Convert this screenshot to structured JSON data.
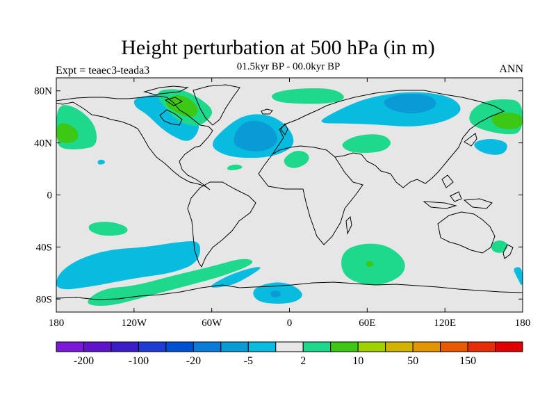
{
  "title": "Height perturbation at 500 hPa (in m)",
  "subtitle": "01.5kyr BP - 00.0kyr BP",
  "left_label": "Expt = teaec3-teada3",
  "right_label": "ANN",
  "map": {
    "projection": "cylindrical equidistant",
    "lon_range": [
      -180,
      180
    ],
    "lat_range": [
      -90,
      90
    ],
    "background_color": "#e6e6e6",
    "lat_ticks": [
      {
        "lat": 80,
        "label": "80N"
      },
      {
        "lat": 40,
        "label": "40N"
      },
      {
        "lat": 0,
        "label": "0"
      },
      {
        "lat": -40,
        "label": "40S"
      },
      {
        "lat": -80,
        "label": "80S"
      }
    ],
    "lon_ticks": [
      {
        "lon": -180,
        "label": "180"
      },
      {
        "lon": -120,
        "label": "120W"
      },
      {
        "lon": -60,
        "label": "60W"
      },
      {
        "lon": 0,
        "label": "0"
      },
      {
        "lon": 60,
        "label": "60E"
      },
      {
        "lon": 120,
        "label": "120E"
      },
      {
        "lon": 180,
        "label": "180"
      }
    ]
  },
  "colorbar": {
    "colors": [
      "#7a1ad6",
      "#5e14c8",
      "#3c1ec8",
      "#1e3cd2",
      "#0050d2",
      "#0a7bd8",
      "#0a9ad6",
      "#08bce0",
      "#e6e6e6",
      "#1ed88c",
      "#3cc814",
      "#a0d200",
      "#d2b400",
      "#e19600",
      "#e65a00",
      "#e62d0a",
      "#e00000"
    ],
    "labels": [
      {
        "after_box": 1,
        "text": "-200"
      },
      {
        "after_box": 3,
        "text": "-100"
      },
      {
        "after_box": 5,
        "text": "-20"
      },
      {
        "after_box": 7,
        "text": "-5"
      },
      {
        "after_box": 9,
        "text": "2"
      },
      {
        "after_box": 11,
        "text": "10"
      },
      {
        "after_box": 13,
        "text": "50"
      },
      {
        "after_box": 15,
        "text": "150"
      }
    ]
  },
  "contour_fills": [
    {
      "level": "-5",
      "color": "#08bce0",
      "pts": [
        [
          -120,
          75
        ],
        [
          -95,
          78
        ],
        [
          -80,
          70
        ],
        [
          -70,
          58
        ],
        [
          -70,
          48
        ],
        [
          -78,
          40
        ],
        [
          -90,
          45
        ],
        [
          -100,
          52
        ],
        [
          -110,
          62
        ],
        [
          -120,
          68
        ]
      ]
    },
    {
      "level": "-5",
      "color": "#08bce0",
      "pts": [
        [
          -62,
          38
        ],
        [
          -52,
          50
        ],
        [
          -35,
          62
        ],
        [
          -15,
          62
        ],
        [
          0,
          52
        ],
        [
          5,
          38
        ],
        [
          -10,
          30
        ],
        [
          -30,
          28
        ],
        [
          -50,
          30
        ]
      ]
    },
    {
      "level": "-20",
      "color": "#0a9ad6",
      "pts": [
        [
          -45,
          40
        ],
        [
          -38,
          55
        ],
        [
          -25,
          58
        ],
        [
          -12,
          52
        ],
        [
          -8,
          40
        ],
        [
          -20,
          33
        ],
        [
          -35,
          34
        ]
      ]
    },
    {
      "level": "-5",
      "color": "#08bce0",
      "pts": [
        [
          20,
          55
        ],
        [
          35,
          64
        ],
        [
          60,
          75
        ],
        [
          95,
          80
        ],
        [
          125,
          76
        ],
        [
          135,
          65
        ],
        [
          120,
          56
        ],
        [
          95,
          52
        ],
        [
          70,
          54
        ],
        [
          45,
          55
        ]
      ]
    },
    {
      "level": "-20",
      "color": "#0a9ad6",
      "pts": [
        [
          70,
          72
        ],
        [
          85,
          78
        ],
        [
          110,
          77
        ],
        [
          115,
          68
        ],
        [
          100,
          62
        ],
        [
          80,
          64
        ]
      ]
    },
    {
      "level": "-5",
      "color": "#08bce0",
      "pts": [
        [
          140,
          40
        ],
        [
          155,
          44
        ],
        [
          170,
          40
        ],
        [
          165,
          30
        ],
        [
          148,
          32
        ]
      ]
    },
    {
      "level": "-5",
      "color": "#08bce0",
      "pts": [
        [
          -148,
          27
        ],
        [
          -143,
          27
        ],
        [
          -142,
          24
        ],
        [
          -148,
          23
        ]
      ]
    },
    {
      "level": "-5",
      "color": "#08bce0",
      "pts": [
        [
          -180,
          -62
        ],
        [
          -165,
          -50
        ],
        [
          -140,
          -42
        ],
        [
          -110,
          -40
        ],
        [
          -85,
          -36
        ],
        [
          -68,
          -35
        ],
        [
          -70,
          -52
        ],
        [
          -90,
          -60
        ],
        [
          -120,
          -64
        ],
        [
          -150,
          -70
        ],
        [
          -180,
          -74
        ]
      ]
    },
    {
      "level": "-5",
      "color": "#08bce0",
      "pts": [
        [
          -65,
          -72
        ],
        [
          -48,
          -62
        ],
        [
          -30,
          -56
        ],
        [
          -20,
          -55
        ],
        [
          -30,
          -62
        ],
        [
          -45,
          -70
        ]
      ]
    },
    {
      "level": "-5",
      "color": "#08bce0",
      "pts": [
        [
          -30,
          -72
        ],
        [
          -10,
          -66
        ],
        [
          5,
          -70
        ],
        [
          12,
          -78
        ],
        [
          0,
          -84
        ],
        [
          -25,
          -83
        ]
      ]
    },
    {
      "level": "-20",
      "color": "#0a9ad6",
      "pts": [
        [
          -15,
          -74
        ],
        [
          -8,
          -73
        ],
        [
          -6,
          -78
        ],
        [
          -14,
          -79
        ]
      ]
    },
    {
      "level": "-5",
      "color": "#08bce0",
      "pts": [
        [
          172,
          -56
        ],
        [
          176,
          -64
        ],
        [
          180,
          -72
        ],
        [
          180,
          -55
        ]
      ]
    },
    {
      "level": "2",
      "color": "#1ed88c",
      "pts": [
        [
          -105,
          80
        ],
        [
          -85,
          82
        ],
        [
          -70,
          75
        ],
        [
          -58,
          65
        ],
        [
          -63,
          57
        ],
        [
          -72,
          52
        ],
        [
          -85,
          56
        ],
        [
          -95,
          65
        ]
      ]
    },
    {
      "level": "10",
      "color": "#3cc814",
      "pts": [
        [
          -98,
          70
        ],
        [
          -90,
          77
        ],
        [
          -80,
          76
        ],
        [
          -70,
          68
        ],
        [
          -72,
          60
        ],
        [
          -82,
          60
        ]
      ]
    },
    {
      "level": "2",
      "color": "#1ed88c",
      "pts": [
        [
          -15,
          78
        ],
        [
          5,
          82
        ],
        [
          35,
          82
        ],
        [
          45,
          74
        ],
        [
          30,
          70
        ],
        [
          5,
          70
        ],
        [
          -12,
          72
        ]
      ]
    },
    {
      "level": "2",
      "color": "#1ed88c",
      "pts": [
        [
          -180,
          70
        ],
        [
          -165,
          68
        ],
        [
          -150,
          55
        ],
        [
          -148,
          38
        ],
        [
          -160,
          35
        ],
        [
          -175,
          35
        ],
        [
          -180,
          40
        ]
      ]
    },
    {
      "level": "10",
      "color": "#3cc814",
      "pts": [
        [
          -180,
          55
        ],
        [
          -170,
          55
        ],
        [
          -162,
          48
        ],
        [
          -165,
          40
        ],
        [
          -180,
          40
        ]
      ]
    },
    {
      "level": "2",
      "color": "#1ed88c",
      "pts": [
        [
          140,
          65
        ],
        [
          150,
          72
        ],
        [
          165,
          74
        ],
        [
          180,
          72
        ],
        [
          180,
          48
        ],
        [
          168,
          46
        ],
        [
          148,
          50
        ],
        [
          138,
          56
        ]
      ]
    },
    {
      "level": "10",
      "color": "#3cc814",
      "pts": [
        [
          155,
          60
        ],
        [
          165,
          64
        ],
        [
          180,
          62
        ],
        [
          180,
          52
        ],
        [
          168,
          50
        ],
        [
          158,
          53
        ]
      ]
    },
    {
      "level": "2",
      "color": "#1ed88c",
      "pts": [
        [
          40,
          40
        ],
        [
          52,
          46
        ],
        [
          72,
          47
        ],
        [
          80,
          40
        ],
        [
          72,
          33
        ],
        [
          52,
          32
        ],
        [
          42,
          35
        ]
      ]
    },
    {
      "level": "2",
      "color": "#1ed88c",
      "pts": [
        [
          -5,
          28
        ],
        [
          5,
          35
        ],
        [
          15,
          32
        ],
        [
          15,
          25
        ],
        [
          5,
          20
        ],
        [
          -3,
          22
        ]
      ]
    },
    {
      "level": "2",
      "color": "#1ed88c",
      "pts": [
        [
          -48,
          22
        ],
        [
          -40,
          24
        ],
        [
          -35,
          21
        ],
        [
          -42,
          19
        ],
        [
          -48,
          19
        ]
      ]
    },
    {
      "level": "2",
      "color": "#1ed88c",
      "pts": [
        [
          -155,
          -22
        ],
        [
          -140,
          -20
        ],
        [
          -125,
          -24
        ],
        [
          -125,
          -30
        ],
        [
          -142,
          -32
        ],
        [
          -155,
          -28
        ]
      ]
    },
    {
      "level": "2",
      "color": "#1ed88c",
      "pts": [
        [
          -145,
          -72
        ],
        [
          -120,
          -70
        ],
        [
          -90,
          -62
        ],
        [
          -60,
          -55
        ],
        [
          -35,
          -48
        ],
        [
          -25,
          -52
        ],
        [
          -50,
          -62
        ],
        [
          -80,
          -70
        ],
        [
          -110,
          -78
        ],
        [
          -140,
          -86
        ],
        [
          -160,
          -84
        ]
      ]
    },
    {
      "level": "2",
      "color": "#1ed88c",
      "pts": [
        [
          40,
          -60
        ],
        [
          52,
          -68
        ],
        [
          70,
          -70
        ],
        [
          88,
          -62
        ],
        [
          90,
          -50
        ],
        [
          75,
          -38
        ],
        [
          55,
          -37
        ],
        [
          40,
          -44
        ]
      ]
    },
    {
      "level": "2",
      "color": "#1ed88c",
      "pts": [
        [
          155,
          -38
        ],
        [
          162,
          -34
        ],
        [
          170,
          -38
        ],
        [
          165,
          -45
        ],
        [
          157,
          -44
        ]
      ]
    },
    {
      "level": "10",
      "color": "#3cc814",
      "pts": [
        [
          58,
          -53
        ],
        [
          62,
          -50
        ],
        [
          66,
          -53
        ],
        [
          62,
          -56
        ]
      ]
    }
  ]
}
